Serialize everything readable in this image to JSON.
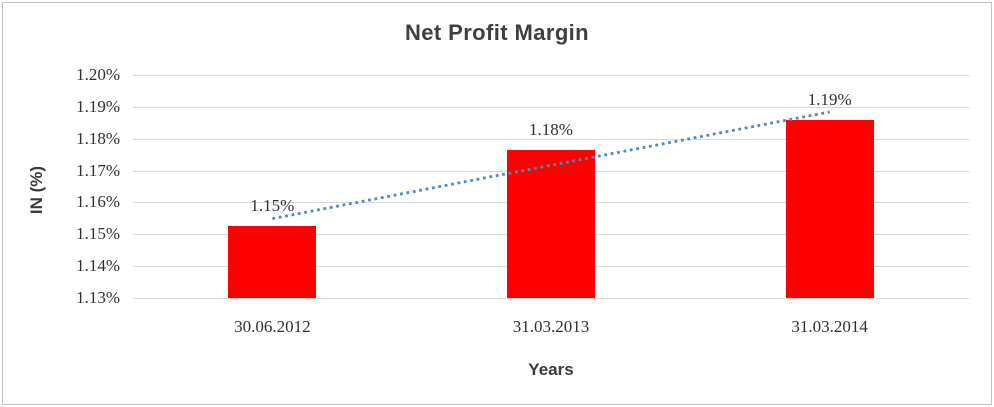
{
  "chart_data": {
    "type": "bar",
    "title": "Net Profit Margin",
    "xlabel": "Years",
    "ylabel": "IN (%)",
    "categories": [
      "30.06.2012",
      "31.03.2013",
      "31.03.2014"
    ],
    "values": [
      1.1525,
      1.1765,
      1.186
    ],
    "data_labels": [
      "1.15%",
      "1.18%",
      "1.19%"
    ],
    "ylim": [
      1.13,
      1.2
    ],
    "ytick_labels": [
      "1.20%",
      "1.19%",
      "1.18%",
      "1.17%",
      "1.16%",
      "1.15%",
      "1.14%",
      "1.13%"
    ],
    "grid": true,
    "legend_position": "none",
    "bar_color": "#ff0000",
    "gridline_color": "#d9d9d9",
    "text_color": "#3a3a3a",
    "trendline": {
      "type": "linear",
      "style": "dotted",
      "color": "#4e86c8"
    }
  }
}
